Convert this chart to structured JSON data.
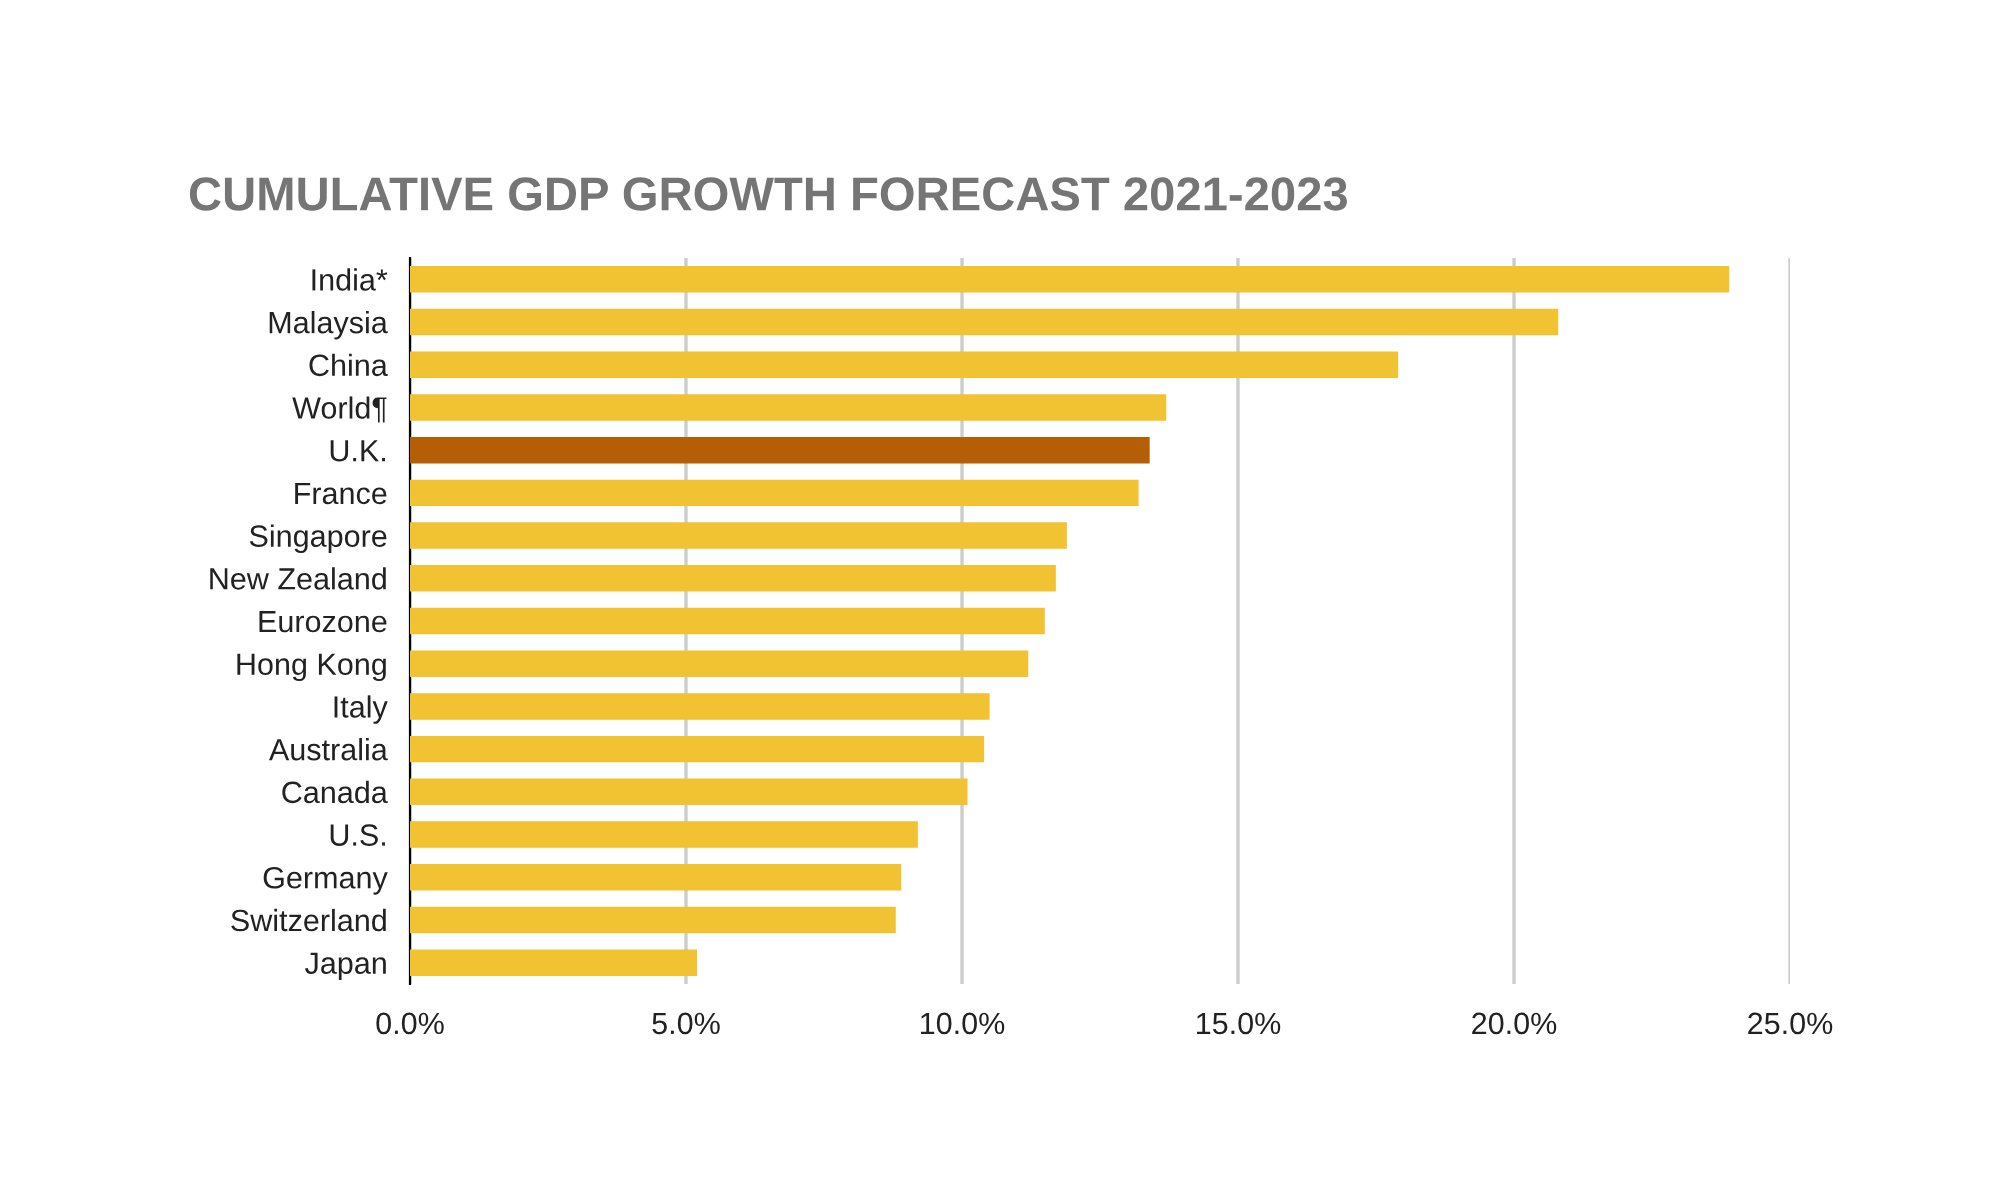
{
  "chart_data": {
    "type": "bar",
    "orientation": "horizontal",
    "title": "CUMULATIVE GDP GROWTH FORECAST 2021-2023",
    "categories": [
      "India*",
      "Malaysia",
      "China",
      "World¶",
      "U.K.",
      "France",
      "Singapore",
      "New Zealand",
      "Eurozone",
      "Hong Kong",
      "Italy",
      "Australia",
      "Canada",
      "U.S.",
      "Germany",
      "Switzerland",
      "Japan"
    ],
    "values": [
      23.9,
      20.8,
      17.9,
      13.7,
      13.4,
      13.2,
      11.9,
      11.7,
      11.5,
      11.2,
      10.5,
      10.4,
      10.1,
      9.2,
      8.9,
      8.8,
      5.2
    ],
    "colors": [
      "#f1c232",
      "#f1c232",
      "#f1c232",
      "#f1c232",
      "#b45f06",
      "#f1c232",
      "#f1c232",
      "#f1c232",
      "#f1c232",
      "#f1c232",
      "#f1c232",
      "#f1c232",
      "#f1c232",
      "#f1c232",
      "#f1c232",
      "#f1c232",
      "#f1c232"
    ],
    "xlim": [
      0,
      25
    ],
    "xticks": [
      {
        "value": 0,
        "label": "0.0%"
      },
      {
        "value": 5,
        "label": "5.0%"
      },
      {
        "value": 10,
        "label": "10.0%"
      },
      {
        "value": 15,
        "label": "15.0%"
      },
      {
        "value": 20,
        "label": "20.0%"
      },
      {
        "value": 25,
        "label": "25.0%"
      }
    ],
    "grid": "x"
  }
}
